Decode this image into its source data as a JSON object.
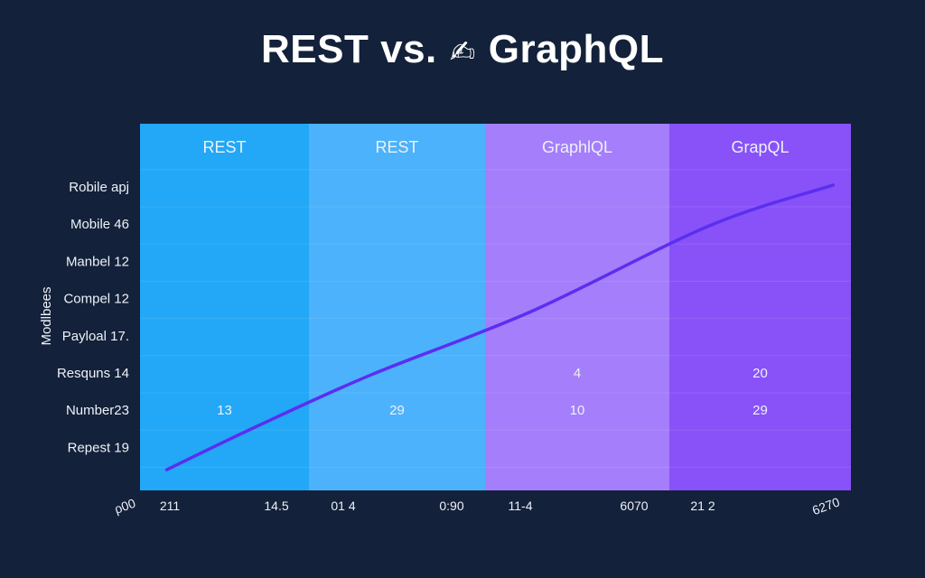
{
  "chart_data": {
    "type": "line",
    "title": {
      "left": "REST vs.",
      "icon": "✍",
      "right": "GraphQL"
    },
    "ylabel": "Modlbees",
    "columns": [
      {
        "label": "REST",
        "color": "#22a8f6"
      },
      {
        "label": "REST",
        "color": "#4bb2fb"
      },
      {
        "label": "GraphlQL",
        "color": "#a47efb"
      },
      {
        "label": "GrapQL",
        "color": "#8852f8"
      }
    ],
    "rows": [
      "Robile apj",
      "Mobile 46",
      "Manbel 12",
      "Compel 12",
      "Payloal 17.",
      "Resquns 14",
      "Number23",
      "Repest 19"
    ],
    "cells": [
      {
        "row": 5,
        "column": 2,
        "text": "4"
      },
      {
        "row": 5,
        "column": 3,
        "text": "20"
      },
      {
        "row": 6,
        "column": 0,
        "text": "13"
      },
      {
        "row": 6,
        "column": 1,
        "text": "29"
      },
      {
        "row": 6,
        "column": 2,
        "text": "10"
      },
      {
        "row": 6,
        "column": 3,
        "text": "29"
      }
    ],
    "x_tick_labels": [
      "ρ00",
      "211",
      "14.5",
      "01 4",
      "0:90",
      "11-4",
      "6070",
      "21 2",
      "6270"
    ],
    "series": [
      {
        "color": "#5b2ef0",
        "points": [
          [
            0.15,
            0.4
          ],
          [
            0.65,
            1.55
          ],
          [
            1.3,
            2.95
          ],
          [
            2.2,
            4.65
          ],
          [
            3.2,
            6.95
          ],
          [
            3.9,
            8.05
          ]
        ]
      }
    ],
    "grid": true,
    "legend": "none"
  }
}
